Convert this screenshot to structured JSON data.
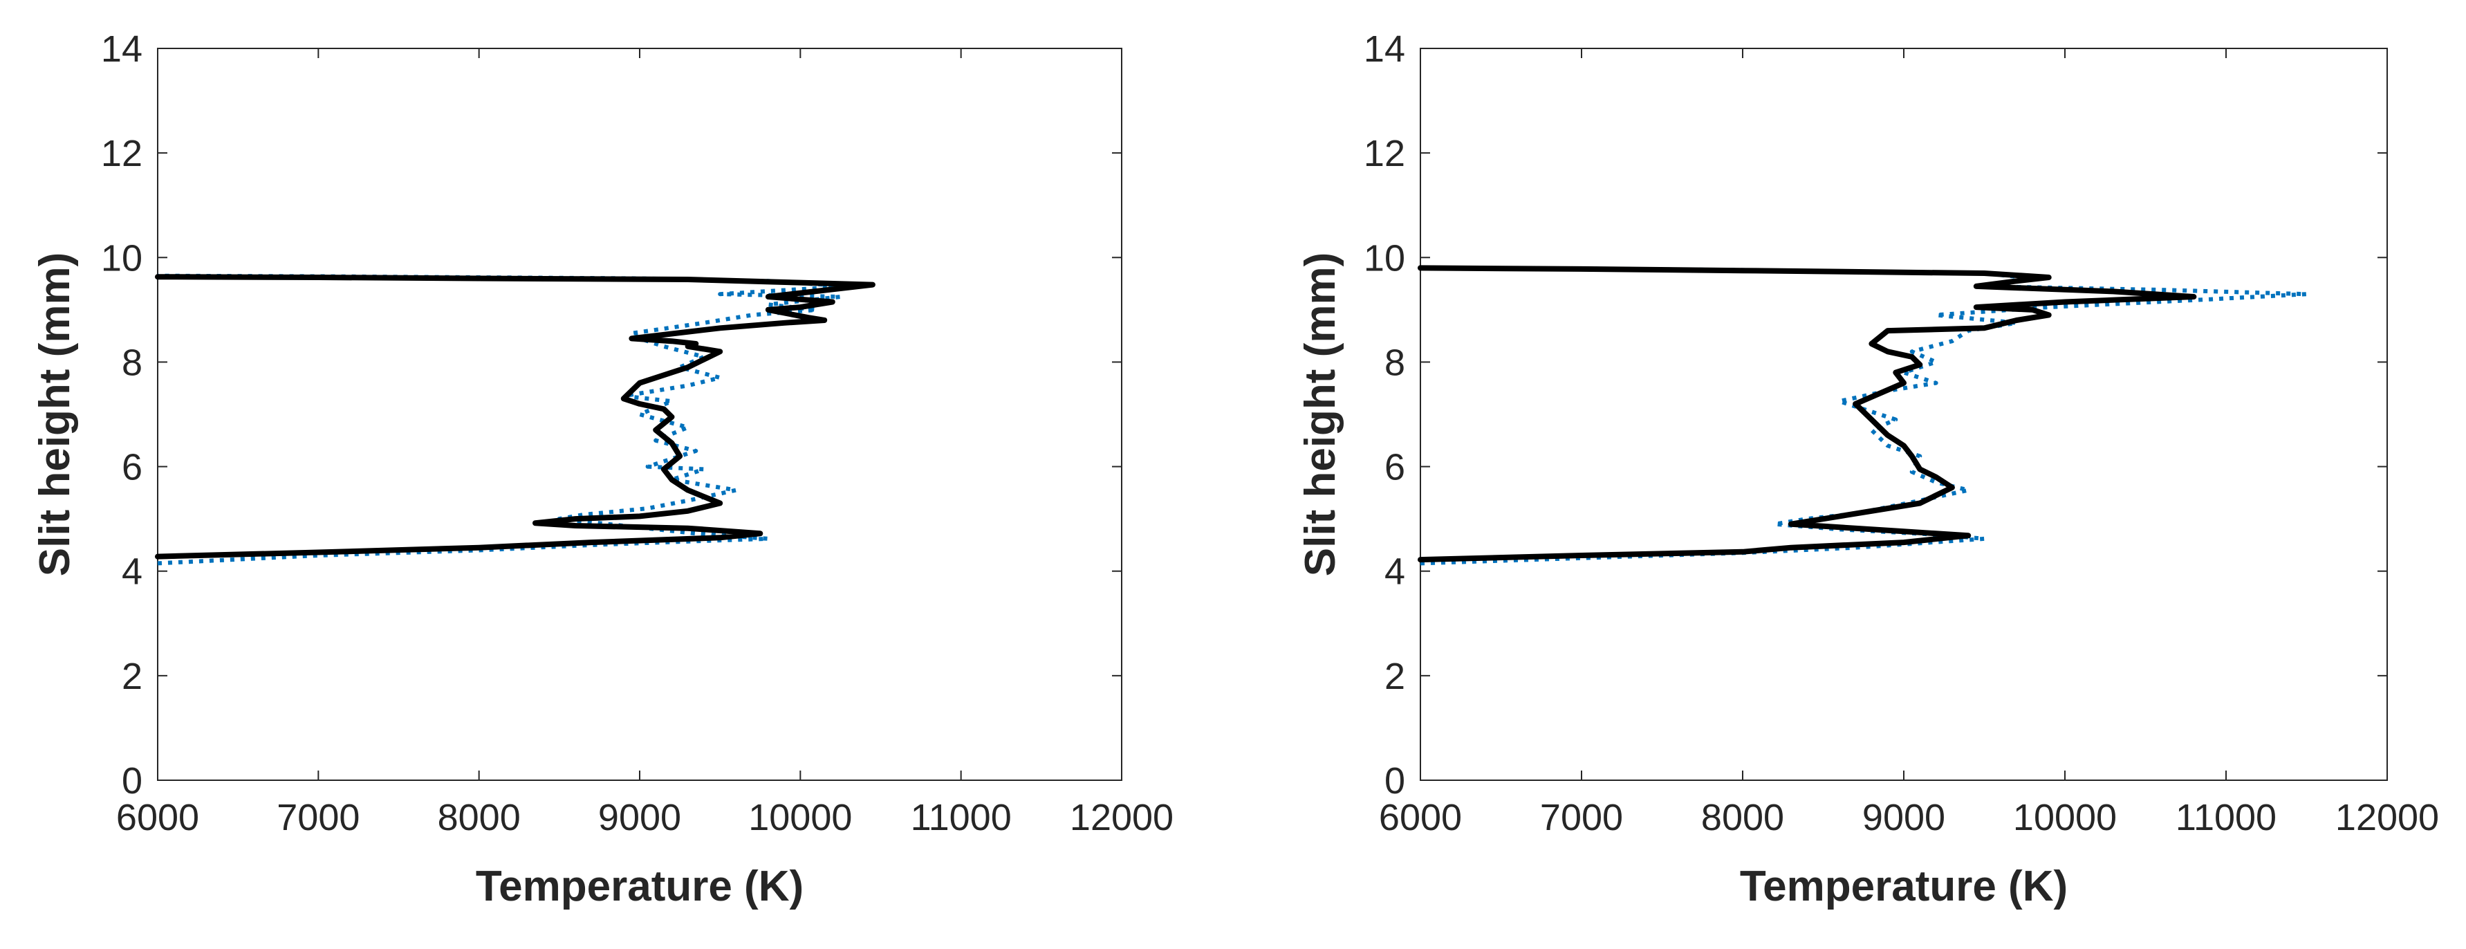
{
  "chart_data": [
    {
      "type": "line",
      "title": "",
      "xlabel": "Temperature (K)",
      "ylabel": "Slit height (mm)",
      "xlim": [
        6000,
        12000
      ],
      "ylim": [
        0,
        14
      ],
      "xticks": [
        "6000",
        "7000",
        "8000",
        "9000",
        "10000",
        "11000",
        "12000"
      ],
      "yticks": [
        "0",
        "2",
        "4",
        "6",
        "8",
        "10",
        "12",
        "14"
      ],
      "grid": false,
      "legend": "none",
      "series": [
        {
          "style": "solid",
          "color": "#000000",
          "x": [
            6000,
            7000,
            8000,
            8700,
            9500,
            9750,
            9300,
            8600,
            8350,
            8600,
            9000,
            9300,
            9500,
            9300,
            9200,
            9150,
            9250,
            9200,
            9100,
            9200,
            9150,
            9000,
            8900,
            9000,
            9200,
            9300,
            9400,
            9500,
            9300,
            9350,
            9200,
            8950,
            9500,
            9900,
            10150,
            10050,
            9800,
            10000,
            10200,
            9800,
            10450,
            10000,
            9300,
            8000,
            7000,
            6000
          ],
          "y": [
            4.28,
            4.36,
            4.45,
            4.55,
            4.64,
            4.72,
            4.82,
            4.87,
            4.92,
            5.0,
            5.05,
            5.15,
            5.3,
            5.55,
            5.75,
            5.95,
            6.2,
            6.45,
            6.7,
            6.95,
            7.1,
            7.2,
            7.3,
            7.6,
            7.8,
            7.9,
            8.05,
            8.2,
            8.3,
            8.35,
            8.4,
            8.45,
            8.65,
            8.75,
            8.8,
            8.85,
            9.0,
            9.05,
            9.15,
            9.25,
            9.48,
            9.52,
            9.58,
            9.6,
            9.62,
            9.63
          ]
        },
        {
          "style": "dotted",
          "color": "#0072BD",
          "x": [
            6000,
            7000,
            8000,
            8700,
            9400,
            9800,
            9350,
            8500,
            8650,
            9050,
            9300,
            9600,
            9200,
            9400,
            9050,
            9350,
            9100,
            9300,
            9000,
            9200,
            8900,
            9300,
            9500,
            9250,
            9400,
            9150,
            9000,
            8950,
            9400,
            9700,
            10100,
            9800,
            10250,
            9500,
            10300,
            9800,
            9000,
            8000,
            7000,
            6000
          ],
          "y": [
            4.15,
            4.3,
            4.4,
            4.5,
            4.58,
            4.62,
            4.72,
            5.0,
            5.08,
            5.2,
            5.35,
            5.55,
            5.75,
            5.95,
            6.0,
            6.3,
            6.5,
            6.75,
            7.0,
            7.25,
            7.35,
            7.55,
            7.7,
            7.9,
            8.1,
            8.3,
            8.45,
            8.55,
            8.75,
            8.9,
            9.0,
            9.1,
            9.25,
            9.3,
            9.45,
            9.55,
            9.6,
            9.62,
            9.64,
            9.65
          ]
        }
      ]
    },
    {
      "type": "line",
      "title": "",
      "xlabel": "Temperature (K)",
      "ylabel": "Slit height (mm)",
      "xlim": [
        6000,
        12000
      ],
      "ylim": [
        0,
        14
      ],
      "xticks": [
        "6000",
        "7000",
        "8000",
        "9000",
        "10000",
        "11000",
        "12000"
      ],
      "yticks": [
        "0",
        "2",
        "4",
        "6",
        "8",
        "10",
        "12",
        "14"
      ],
      "grid": false,
      "legend": "none",
      "series": [
        {
          "style": "solid",
          "color": "#000000",
          "x": [
            6000,
            7000,
            8000,
            8300,
            9000,
            9400,
            8900,
            8300,
            8600,
            9100,
            9300,
            9200,
            9100,
            9050,
            9000,
            8900,
            8700,
            8850,
            9000,
            8950,
            9100,
            9050,
            8900,
            8800,
            8900,
            9500,
            9700,
            9900,
            9800,
            9450,
            10000,
            10800,
            10300,
            9450,
            9700,
            9900,
            9500,
            8000,
            7000,
            6000
          ],
          "y": [
            4.22,
            4.3,
            4.37,
            4.45,
            4.55,
            4.68,
            4.78,
            4.9,
            5.05,
            5.3,
            5.6,
            5.8,
            5.95,
            6.2,
            6.4,
            6.6,
            7.2,
            7.4,
            7.6,
            7.8,
            7.95,
            8.1,
            8.2,
            8.35,
            8.6,
            8.65,
            8.8,
            8.9,
            9.0,
            9.05,
            9.15,
            9.25,
            9.35,
            9.45,
            9.55,
            9.62,
            9.7,
            9.75,
            9.78,
            9.8
          ]
        },
        {
          "style": "dotted",
          "color": "#0072BD",
          "x": [
            6000,
            7000,
            8000,
            8700,
            9500,
            9200,
            8600,
            8200,
            8400,
            8700,
            9100,
            9400,
            9200,
            9050,
            9100,
            8900,
            8800,
            8950,
            8600,
            8900,
            9200,
            9000,
            9200,
            9050,
            9300,
            9400,
            9700,
            9200,
            9900,
            10900,
            11500,
            10600,
            9500,
            9800,
            9500,
            8000,
            7000,
            6000
          ],
          "y": [
            4.15,
            4.25,
            4.35,
            4.45,
            4.62,
            4.7,
            4.8,
            4.9,
            5.0,
            5.1,
            5.35,
            5.55,
            5.7,
            5.9,
            6.2,
            6.4,
            6.7,
            6.9,
            7.25,
            7.45,
            7.6,
            7.8,
            8.0,
            8.2,
            8.4,
            8.6,
            8.75,
            8.9,
            9.05,
            9.2,
            9.3,
            9.38,
            9.45,
            9.6,
            9.7,
            9.76,
            9.79,
            9.8
          ]
        }
      ]
    }
  ]
}
